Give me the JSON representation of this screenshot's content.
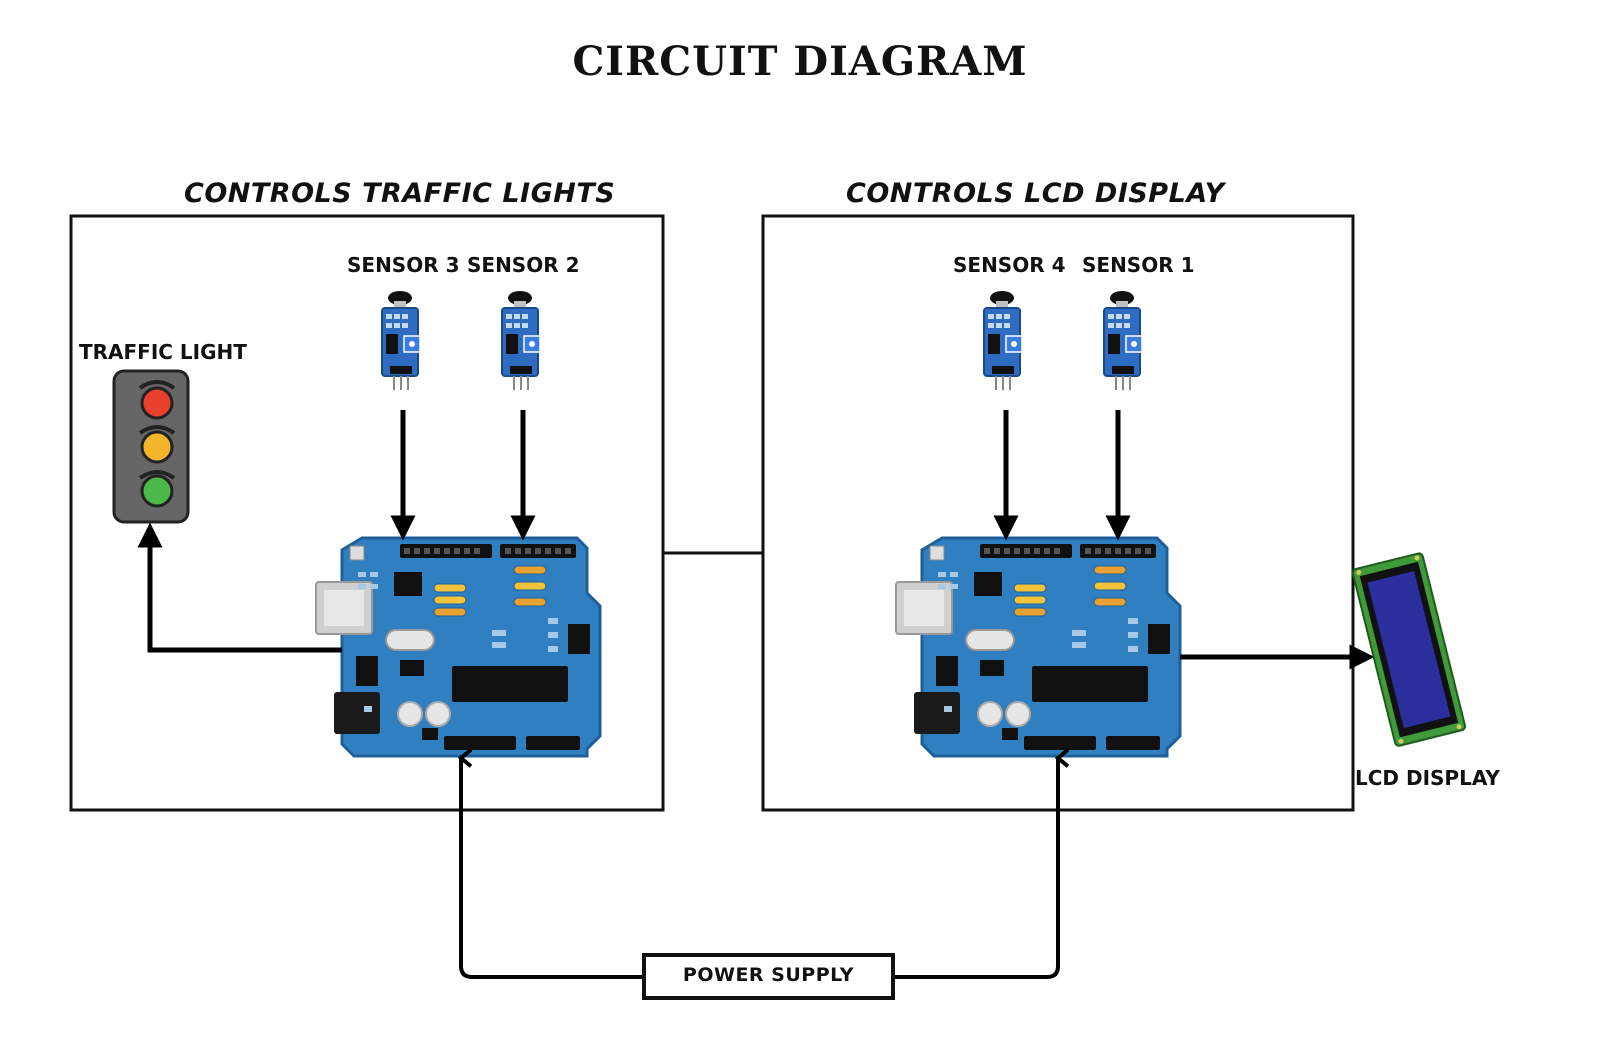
{
  "title": "CIRCUIT DIAGRAM",
  "sections": {
    "left": {
      "heading": "CONTROLS TRAFFIC LIGHTS",
      "sensors": [
        "SENSOR 3",
        "SENSOR 2"
      ]
    },
    "right": {
      "heading": "CONTROLS LCD DISPLAY",
      "sensors": [
        "SENSOR 4",
        "SENSOR 1"
      ]
    }
  },
  "labels": {
    "traffic_light": "TRAFFIC LIGHT",
    "lcd_display": "LCD DISPLAY",
    "power_supply": "POWER SUPPLY"
  },
  "colors": {
    "board": "#2f7fc1",
    "board_dark": "#1f5f99",
    "light_red": "#e8402a",
    "light_yellow": "#f4b52b",
    "light_green": "#4cb84a",
    "lcd_screen": "#2b2f9e",
    "lcd_pcb": "#3f9a3a"
  }
}
